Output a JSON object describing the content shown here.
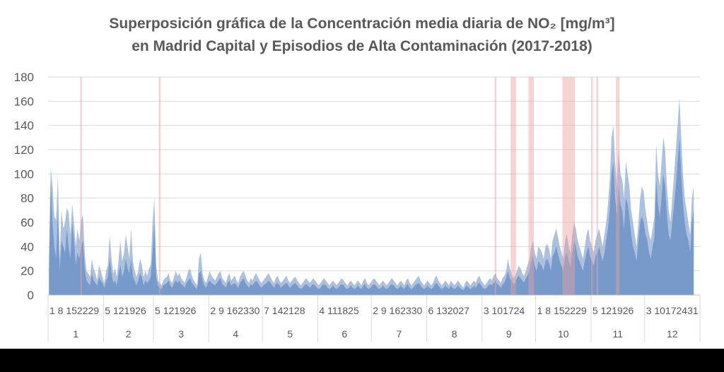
{
  "chart_data": {
    "type": "area",
    "title": [
      "Superposición gráfica de la Concentración media diaria de NO₂ [mg/m³]",
      "en Madrid Capital y Episodios de Alta Contaminación (2017-2018)"
    ],
    "ylim": [
      0,
      180
    ],
    "yticks": [
      0,
      20,
      40,
      60,
      80,
      100,
      120,
      140,
      160,
      180
    ],
    "months": [
      {
        "label": "1",
        "days": 31,
        "ticks": "1  8 152229"
      },
      {
        "label": "2",
        "days": 28,
        "ticks": "5 121926"
      },
      {
        "label": "3",
        "days": 31,
        "ticks": "5 121926"
      },
      {
        "label": "4",
        "days": 30,
        "ticks": "2  9 162330"
      },
      {
        "label": "5",
        "days": 31,
        "ticks": "7 142128"
      },
      {
        "label": "6",
        "days": 30,
        "ticks": "4 111825"
      },
      {
        "label": "7",
        "days": 31,
        "ticks": "2  9 162330"
      },
      {
        "label": "8",
        "days": 31,
        "ticks": "6 132027"
      },
      {
        "label": "9",
        "days": 30,
        "ticks": "3 101724"
      },
      {
        "label": "10",
        "days": 31,
        "ticks": "1  8 152229"
      },
      {
        "label": "11",
        "days": 30,
        "ticks": "5 121926"
      },
      {
        "label": "12",
        "days": 31,
        "ticks": "3 10172431"
      }
    ],
    "series": [
      {
        "color": "#9fb6d9",
        "values": [
          30,
          105,
          90,
          65,
          62,
          100,
          30,
          70,
          55,
          60,
          72,
          68,
          50,
          75,
          60,
          40,
          55,
          45,
          62,
          66,
          35,
          20,
          18,
          15,
          30,
          22,
          18,
          12,
          25,
          20,
          15,
          10,
          20,
          25,
          50,
          30,
          18,
          22,
          15,
          30,
          45,
          28,
          35,
          50,
          40,
          30,
          55,
          28,
          20,
          15,
          20,
          30,
          25,
          15,
          20,
          16,
          22,
          25,
          60,
          80,
          25,
          12,
          10,
          8,
          12,
          14,
          15,
          18,
          12,
          10,
          15,
          20,
          16,
          18,
          14,
          12,
          10,
          15,
          20,
          22,
          16,
          12,
          10,
          8,
          30,
          35,
          18,
          12,
          10,
          15,
          20,
          16,
          14,
          12,
          15,
          18,
          20,
          14,
          12,
          10,
          15,
          18,
          12,
          14,
          16,
          12,
          10,
          15,
          18,
          20,
          16,
          12,
          10,
          14,
          12,
          16,
          18,
          15,
          12,
          10,
          12,
          14,
          16,
          18,
          15,
          12,
          10,
          14,
          16,
          12,
          10,
          12,
          14,
          16,
          12,
          10,
          12,
          14,
          15,
          12,
          10,
          8,
          10,
          12,
          14,
          12,
          10,
          12,
          14,
          12,
          10,
          8,
          10,
          12,
          14,
          12,
          10,
          8,
          10,
          12,
          10,
          8,
          10,
          12,
          14,
          12,
          10,
          8,
          10,
          12,
          10,
          8,
          10,
          12,
          10,
          8,
          12,
          14,
          10,
          8,
          10,
          12,
          14,
          12,
          10,
          8,
          10,
          12,
          10,
          8,
          10,
          12,
          14,
          12,
          10,
          8,
          10,
          12,
          10,
          8,
          12,
          14,
          10,
          8,
          10,
          12,
          14,
          16,
          12,
          10,
          8,
          10,
          12,
          10,
          8,
          10,
          14,
          16,
          12,
          10,
          8,
          10,
          12,
          10,
          8,
          12,
          10,
          8,
          10,
          12,
          10,
          8,
          6,
          10,
          12,
          10,
          8,
          10,
          12,
          10,
          14,
          16,
          12,
          10,
          8,
          10,
          12,
          14,
          12,
          16,
          18,
          14,
          12,
          10,
          14,
          16,
          20,
          30,
          22,
          18,
          14,
          16,
          20,
          24,
          22,
          18,
          16,
          20,
          25,
          30,
          40,
          45,
          35,
          30,
          40,
          38,
          35,
          30,
          40,
          42,
          38,
          30,
          45,
          50,
          55,
          48,
          40,
          35,
          30,
          45,
          50,
          40,
          35,
          50,
          60,
          55,
          45,
          40,
          35,
          30,
          40,
          50,
          55,
          45,
          40,
          35,
          45,
          50,
          55,
          48,
          40,
          50,
          60,
          75,
          95,
          130,
          140,
          110,
          90,
          120,
          100,
          95,
          80,
          110,
          100,
          90,
          70,
          60,
          50,
          40,
          60,
          80,
          90,
          85,
          70,
          60,
          50,
          45,
          55,
          65,
          125,
          100,
          90,
          110,
          130,
          120,
          90,
          70,
          60,
          80,
          100,
          120,
          140,
          163,
          130,
          100,
          80,
          70,
          60,
          50,
          80,
          90
        ]
      },
      {
        "color": "#6f93c8",
        "values": [
          22,
          95,
          60,
          40,
          30,
          70,
          20,
          45,
          40,
          35,
          55,
          40,
          30,
          60,
          45,
          25,
          35,
          30,
          40,
          45,
          22,
          12,
          10,
          8,
          18,
          12,
          10,
          8,
          15,
          12,
          10,
          6,
          12,
          15,
          30,
          18,
          10,
          12,
          8,
          18,
          25,
          15,
          20,
          30,
          22,
          18,
          30,
          15,
          12,
          8,
          12,
          18,
          15,
          8,
          12,
          10,
          12,
          15,
          35,
          60,
          15,
          8,
          6,
          5,
          8,
          9,
          10,
          12,
          8,
          6,
          10,
          12,
          10,
          12,
          9,
          8,
          6,
          10,
          12,
          14,
          10,
          8,
          6,
          5,
          18,
          20,
          12,
          8,
          6,
          10,
          12,
          10,
          9,
          8,
          10,
          12,
          14,
          9,
          8,
          6,
          10,
          12,
          8,
          9,
          10,
          8,
          6,
          10,
          12,
          14,
          10,
          8,
          6,
          9,
          8,
          10,
          12,
          10,
          8,
          6,
          8,
          9,
          10,
          12,
          10,
          8,
          6,
          9,
          10,
          8,
          6,
          8,
          9,
          10,
          8,
          6,
          8,
          9,
          10,
          8,
          6,
          5,
          6,
          8,
          9,
          8,
          6,
          8,
          9,
          8,
          6,
          5,
          6,
          8,
          9,
          8,
          6,
          5,
          6,
          8,
          6,
          5,
          6,
          8,
          9,
          8,
          6,
          5,
          6,
          8,
          6,
          5,
          6,
          8,
          6,
          5,
          8,
          9,
          6,
          5,
          6,
          8,
          9,
          8,
          6,
          5,
          6,
          8,
          6,
          5,
          6,
          8,
          9,
          8,
          6,
          5,
          6,
          8,
          6,
          5,
          8,
          9,
          6,
          5,
          6,
          8,
          9,
          10,
          8,
          6,
          5,
          6,
          8,
          6,
          5,
          6,
          9,
          10,
          8,
          6,
          5,
          6,
          8,
          6,
          5,
          8,
          6,
          5,
          6,
          8,
          6,
          5,
          4,
          6,
          8,
          6,
          5,
          6,
          8,
          6,
          9,
          10,
          8,
          6,
          5,
          6,
          8,
          9,
          8,
          10,
          12,
          9,
          8,
          6,
          9,
          10,
          14,
          20,
          14,
          12,
          9,
          10,
          14,
          16,
          14,
          12,
          10,
          14,
          16,
          20,
          28,
          32,
          24,
          20,
          28,
          26,
          24,
          20,
          28,
          30,
          26,
          20,
          32,
          35,
          40,
          34,
          28,
          24,
          20,
          32,
          35,
          28,
          24,
          35,
          45,
          40,
          32,
          28,
          24,
          20,
          28,
          35,
          40,
          32,
          28,
          24,
          32,
          35,
          40,
          34,
          28,
          35,
          45,
          55,
          70,
          100,
          110,
          80,
          65,
          90,
          75,
          70,
          55,
          80,
          75,
          65,
          50,
          40,
          35,
          28,
          45,
          60,
          65,
          60,
          50,
          45,
          35,
          30,
          40,
          48,
          95,
          75,
          65,
          80,
          100,
          90,
          65,
          50,
          45,
          60,
          75,
          90,
          110,
          130,
          100,
          75,
          60,
          50,
          45,
          35,
          60,
          70
        ]
      }
    ],
    "episodes": [
      [
        18,
        19
      ],
      [
        62,
        63
      ],
      [
        250,
        251
      ],
      [
        259,
        262
      ],
      [
        269,
        272
      ],
      [
        288,
        295
      ],
      [
        304,
        305
      ],
      [
        307,
        308
      ],
      [
        318,
        320
      ]
    ]
  }
}
